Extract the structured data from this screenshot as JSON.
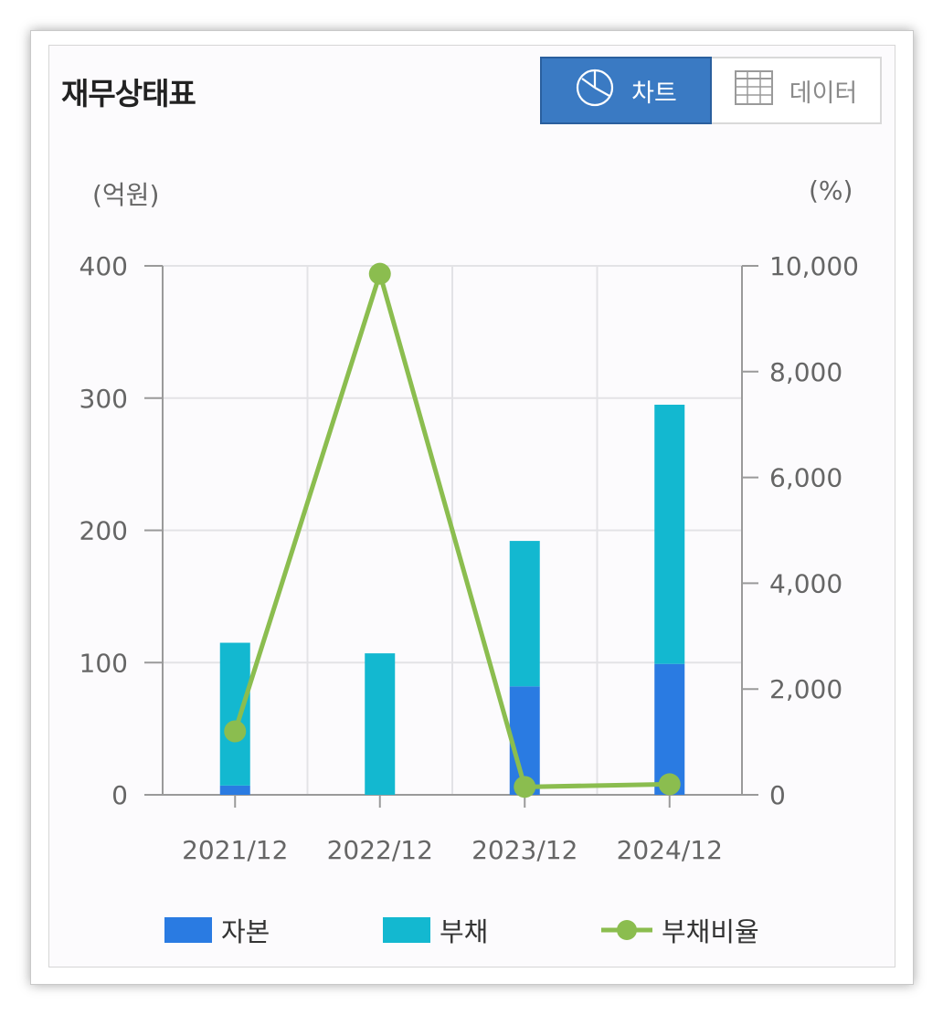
{
  "header": {
    "title": "재무상태표",
    "toggle": [
      {
        "label": "차트",
        "icon": "pie-chart-icon",
        "active": true
      },
      {
        "label": "데이터",
        "icon": "table-grid-icon",
        "active": false
      }
    ]
  },
  "colors": {
    "equity": "#2a7be2",
    "liabilities": "#13b8d0",
    "ratio": "#8bbd4f",
    "active_toggle": "#3a7ac3"
  },
  "chart_data": {
    "type": "bar",
    "stacked": true,
    "categories": [
      "2021/12",
      "2022/12",
      "2023/12",
      "2024/12"
    ],
    "series": [
      {
        "name": "자본",
        "type": "bar",
        "axis": "left",
        "values": [
          7,
          0,
          82,
          99
        ]
      },
      {
        "name": "부채",
        "type": "bar",
        "axis": "left",
        "values": [
          108,
          107,
          110,
          196
        ]
      },
      {
        "name": "부채비율",
        "type": "line",
        "axis": "right",
        "values": [
          1200,
          9850,
          150,
          200
        ]
      }
    ],
    "left_axis": {
      "unit": "(억원)",
      "ylim": [
        0,
        400
      ],
      "ticks": [
        0,
        100,
        200,
        300,
        400
      ],
      "tick_labels": [
        "0",
        "100",
        "200",
        "300",
        "400"
      ]
    },
    "right_axis": {
      "unit": "(%)",
      "ylim": [
        0,
        10000
      ],
      "ticks": [
        0,
        2000,
        4000,
        6000,
        8000,
        10000
      ],
      "tick_labels": [
        "0",
        "2,000",
        "4,000",
        "6,000",
        "8,000",
        "10,000"
      ]
    },
    "grid": true,
    "legend_position": "bottom"
  }
}
